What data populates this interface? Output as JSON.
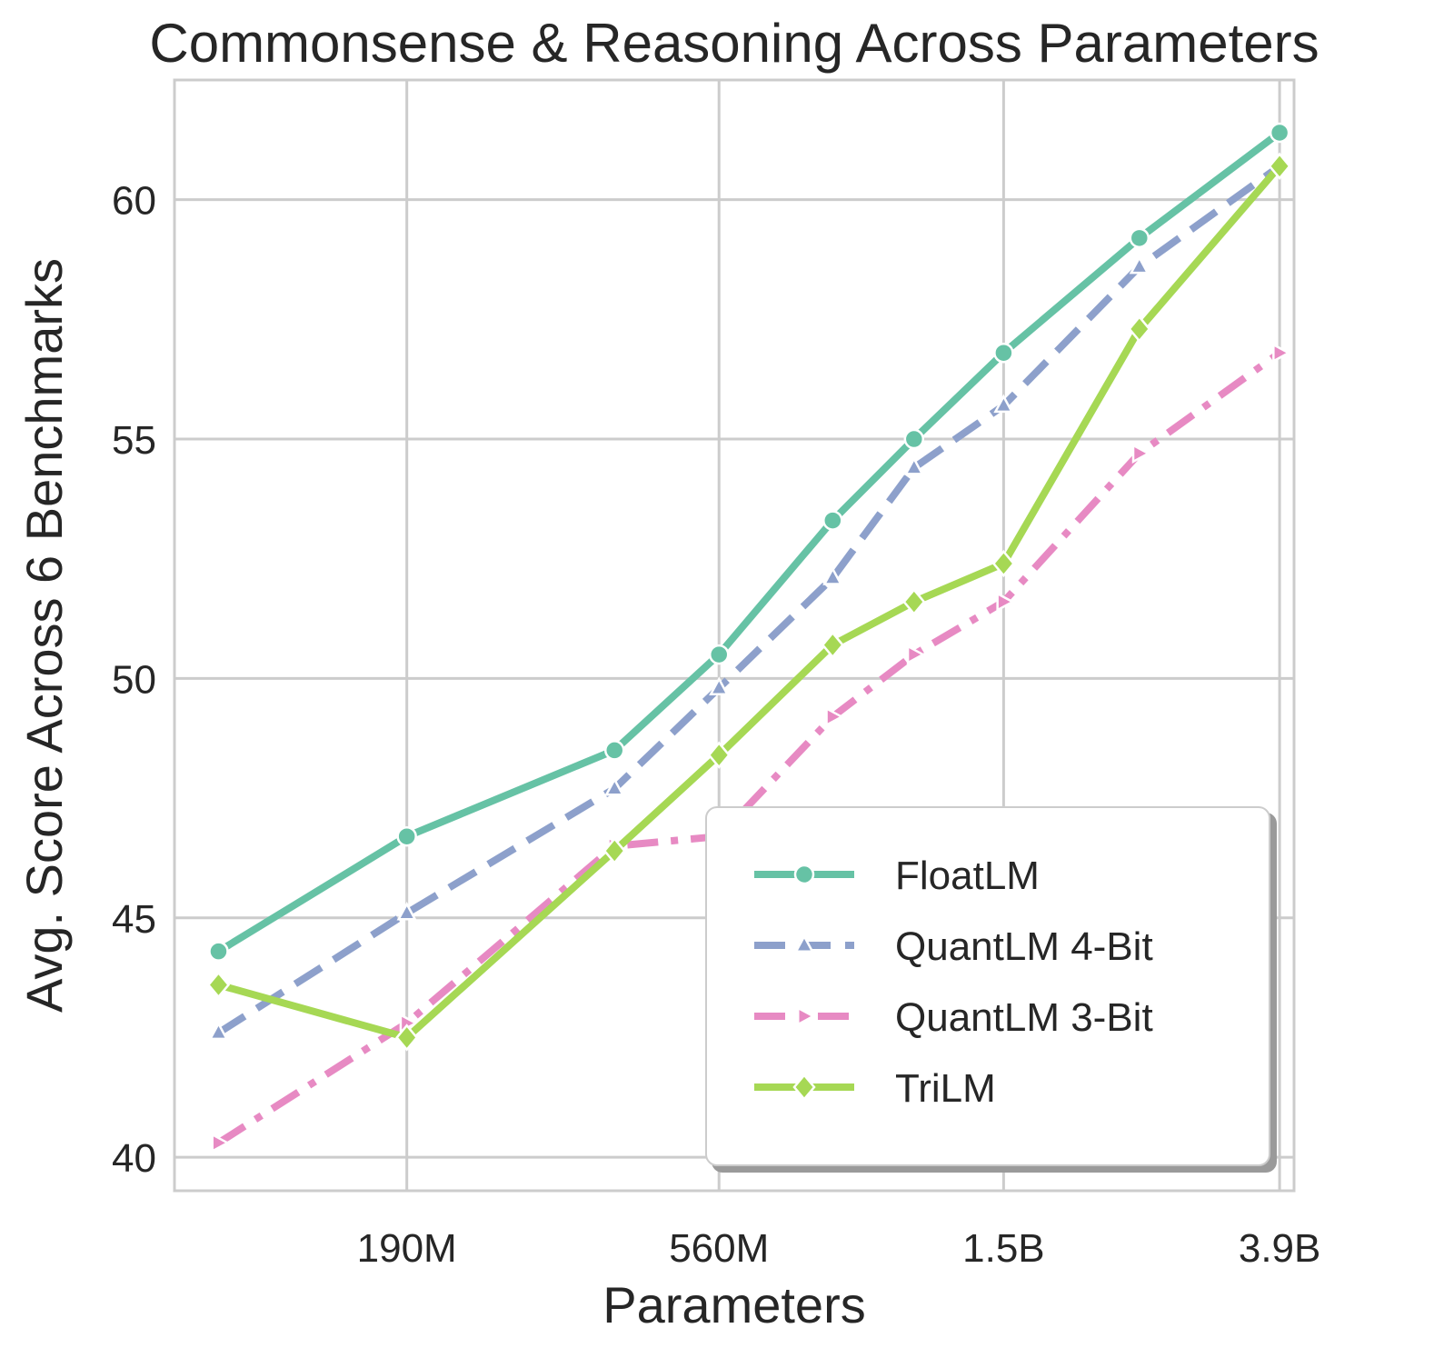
{
  "chart_data": {
    "type": "line",
    "title": "Commonsense & Reasoning Across Parameters",
    "xlabel": "Parameters",
    "ylabel": "Avg. Score Across 6 Benchmarks",
    "x": [
      99,
      190,
      390,
      560,
      830,
      1100,
      1500,
      2400,
      3900
    ],
    "x_scale": "log",
    "xlim": [
      85,
      4100
    ],
    "xticks": [
      190,
      560,
      1500,
      3900
    ],
    "xtick_labels": [
      "190M",
      "560M",
      "1.5B",
      "3.9B"
    ],
    "ylim": [
      39.3,
      62.5
    ],
    "yticks": [
      40,
      45,
      50,
      55,
      60
    ],
    "ytick_labels": [
      "40",
      "45",
      "50",
      "55",
      "60"
    ],
    "grid": true,
    "legend_position": "lower-right",
    "series": [
      {
        "name": "FloatLM",
        "color": "#66c2a5",
        "marker": "circle",
        "dash": "solid",
        "values": [
          44.3,
          46.7,
          48.5,
          50.5,
          53.3,
          55.0,
          56.8,
          59.2,
          61.4
        ]
      },
      {
        "name": "QuantLM 4-Bit",
        "color": "#8da0cb",
        "marker": "triangle-up",
        "dash": "dashed",
        "values": [
          42.6,
          45.1,
          47.7,
          49.8,
          52.1,
          54.4,
          55.7,
          58.6,
          60.7
        ]
      },
      {
        "name": "QuantLM 3-Bit",
        "color": "#e78ac3",
        "marker": "triangle-right",
        "dash": "dashdot",
        "values": [
          40.3,
          42.8,
          46.5,
          46.7,
          49.2,
          50.5,
          51.6,
          54.7,
          56.8
        ]
      },
      {
        "name": "TriLM",
        "color": "#a6d854",
        "marker": "diamond",
        "dash": "solid",
        "values": [
          43.6,
          42.5,
          46.4,
          48.4,
          50.7,
          51.6,
          52.4,
          57.3,
          60.7
        ]
      }
    ]
  }
}
